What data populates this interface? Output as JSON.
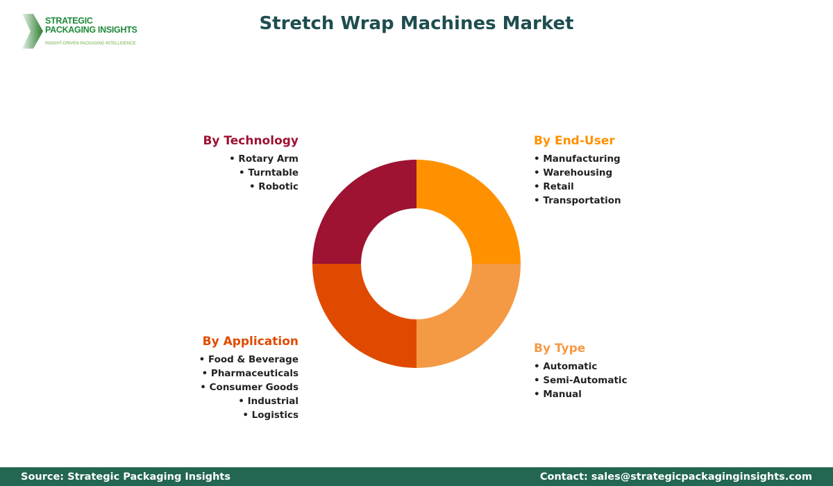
{
  "logo": {
    "line1": "STRATEGIC",
    "line2": "PACKAGING INSIGHTS",
    "tagline": "INSIGHT-DRIVEN PACKAGING INTELLIGENCE"
  },
  "title": "Stretch Wrap Machines Market",
  "segments": [
    {
      "title": "By Technology",
      "color": "#9E1232",
      "items": [
        "Rotary Arm",
        "Turntable",
        "Robotic"
      ]
    },
    {
      "title": "By End-User",
      "color": "#FF9100",
      "items": [
        "Manufacturing",
        "Warehousing",
        "Retail",
        "Transportation"
      ]
    },
    {
      "title": "By Type",
      "color": "#F49A45",
      "items": [
        "Automatic",
        "Semi-Automatic",
        "Manual"
      ]
    },
    {
      "title": "By Application",
      "color": "#E04A00",
      "items": [
        "Food & Beverage",
        "Pharmaceuticals",
        "Consumer Goods",
        "Industrial",
        "Logistics"
      ]
    }
  ],
  "footer": {
    "source": "Source: Strategic Packaging Insights",
    "contact": "Contact: sales@strategicpackaginginsights.com"
  }
}
